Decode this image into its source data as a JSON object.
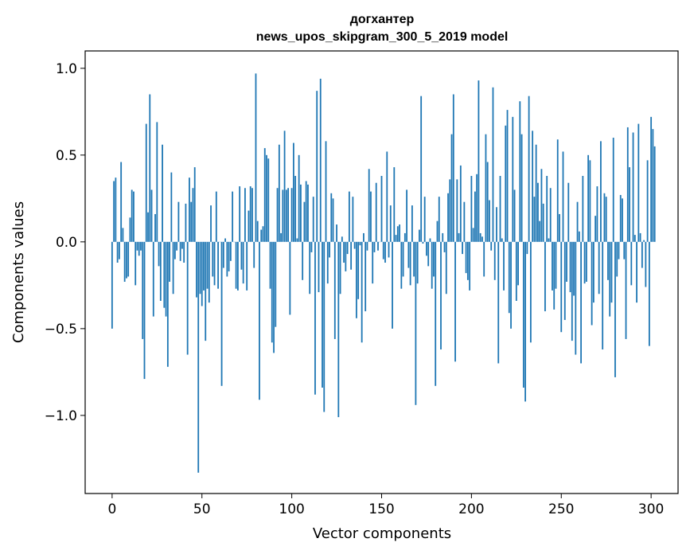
{
  "chart_data": {
    "type": "bar",
    "title_line1": "догхантер",
    "title_line2": "news_upos_skipgram_300_5_2019 model",
    "xlabel": "Vector components",
    "ylabel": "Components values",
    "xlim": [
      -15,
      315
    ],
    "ylim": [
      -1.45,
      1.1
    ],
    "x_ticks": [
      0,
      50,
      100,
      150,
      200,
      250,
      300
    ],
    "x_tick_labels": [
      "0",
      "50",
      "100",
      "150",
      "200",
      "250",
      "300"
    ],
    "y_ticks": [
      -1.0,
      -0.5,
      0.0,
      0.5,
      1.0
    ],
    "y_tick_labels": [
      "−1.0",
      "−0.5",
      "0.0",
      "0.5",
      "1.0"
    ],
    "bar_color": "#1f77b4",
    "grid": false,
    "values": [
      -0.5,
      0.35,
      0.37,
      -0.12,
      -0.1,
      0.46,
      0.08,
      -0.23,
      -0.21,
      -0.2,
      0.14,
      0.3,
      0.29,
      -0.25,
      -0.05,
      -0.08,
      -0.05,
      -0.56,
      -0.79,
      0.68,
      0.17,
      0.85,
      0.3,
      -0.43,
      0.16,
      0.69,
      -0.14,
      -0.34,
      0.56,
      -0.38,
      -0.43,
      -0.72,
      -0.23,
      0.4,
      -0.3,
      -0.1,
      -0.05,
      0.23,
      -0.11,
      -0.04,
      -0.12,
      0.22,
      -0.65,
      0.37,
      0.23,
      0.31,
      0.43,
      -0.32,
      -1.33,
      -0.3,
      -0.37,
      -0.28,
      -0.57,
      -0.27,
      -0.35,
      0.21,
      -0.2,
      -0.25,
      0.29,
      -0.27,
      0.0,
      -0.83,
      -0.15,
      0.02,
      -0.2,
      -0.17,
      -0.11,
      0.29,
      0.0,
      -0.27,
      -0.28,
      0.32,
      -0.16,
      -0.24,
      0.31,
      -0.28,
      0.18,
      0.32,
      0.31,
      -0.15,
      0.97,
      0.12,
      -0.91,
      0.07,
      0.09,
      0.54,
      0.5,
      0.48,
      -0.27,
      -0.58,
      -0.64,
      -0.49,
      0.31,
      0.56,
      0.05,
      0.3,
      0.64,
      0.3,
      0.31,
      -0.42,
      0.31,
      0.57,
      0.38,
      0.02,
      0.5,
      0.33,
      -0.22,
      0.23,
      0.35,
      0.33,
      -0.3,
      -0.06,
      0.26,
      -0.88,
      0.87,
      -0.29,
      0.94,
      -0.84,
      -0.98,
      0.58,
      -0.24,
      -0.09,
      0.28,
      0.25,
      -0.56,
      0.1,
      -1.01,
      -0.3,
      0.03,
      -0.12,
      -0.17,
      -0.07,
      0.29,
      -0.16,
      0.26,
      -0.04,
      -0.44,
      -0.33,
      -0.02,
      -0.58,
      0.05,
      -0.4,
      -0.05,
      0.42,
      0.29,
      -0.24,
      -0.06,
      0.34,
      -0.05,
      0.0,
      0.38,
      -0.1,
      -0.12,
      0.52,
      -0.09,
      0.21,
      -0.5,
      0.43,
      0.04,
      0.09,
      0.1,
      -0.27,
      -0.2,
      0.05,
      0.3,
      -0.15,
      -0.25,
      0.21,
      -0.2,
      -0.94,
      -0.24,
      0.07,
      0.84,
      -0.01,
      0.26,
      -0.08,
      -0.14,
      0.02,
      -0.27,
      -0.2,
      -0.83,
      0.12,
      0.26,
      -0.62,
      0.05,
      -0.06,
      -0.3,
      0.28,
      0.36,
      0.62,
      0.85,
      -0.69,
      0.36,
      0.05,
      0.44,
      -0.07,
      0.23,
      -0.18,
      -0.22,
      -0.28,
      0.38,
      0.08,
      0.29,
      0.39,
      0.93,
      0.05,
      0.03,
      -0.2,
      0.62,
      0.46,
      0.24,
      -0.05,
      0.89,
      -0.22,
      0.2,
      -0.7,
      0.38,
      0.02,
      -0.28,
      0.67,
      0.76,
      -0.41,
      -0.5,
      0.72,
      0.3,
      -0.34,
      -0.25,
      0.81,
      0.62,
      -0.84,
      -0.92,
      -0.07,
      0.84,
      -0.58,
      0.64,
      0.26,
      0.56,
      0.34,
      0.12,
      0.42,
      0.22,
      -0.4,
      0.38,
      0.02,
      0.31,
      -0.28,
      -0.39,
      -0.27,
      0.59,
      0.16,
      -0.52,
      0.52,
      -0.45,
      -0.23,
      0.34,
      -0.29,
      -0.57,
      -0.31,
      -0.65,
      0.23,
      0.06,
      -0.7,
      0.38,
      -0.24,
      -0.23,
      0.5,
      0.47,
      -0.48,
      -0.35,
      0.15,
      0.32,
      -0.3,
      0.58,
      -0.62,
      0.28,
      0.26,
      -0.22,
      -0.43,
      -0.35,
      0.6,
      -0.78,
      -0.2,
      -0.1,
      0.27,
      0.25,
      -0.1,
      -0.56,
      0.66,
      0.43,
      -0.25,
      0.63,
      0.04,
      -0.35,
      0.68,
      0.05,
      -0.15,
      0.01,
      -0.26,
      0.47,
      -0.6,
      0.72,
      0.65,
      0.55
    ]
  }
}
